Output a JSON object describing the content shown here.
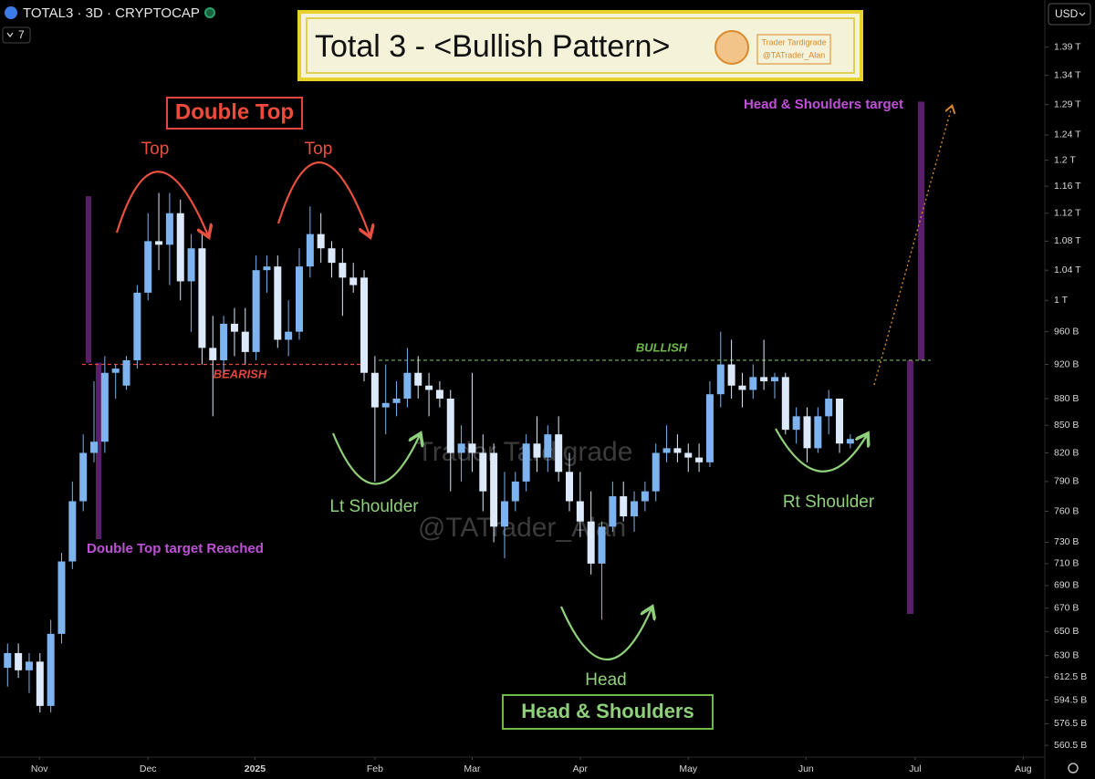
{
  "header": {
    "symbol": "TOTAL3 · 3D · CRYPTOCAP",
    "indicator_count": "7",
    "currency": "USD"
  },
  "chart_data": {
    "type": "candlestick",
    "title": "Total 3 - <Bullish Pattern>",
    "logo": [
      "Trader Tardigrade",
      "@TATrader_Alan"
    ],
    "watermark": [
      "Trader Tardigrade",
      "@TATrader_Alan"
    ],
    "up_color": "#7db4ef",
    "down_color": "#dce9fb",
    "log_scale": true,
    "open": [
      620,
      632,
      618,
      625,
      590,
      648,
      712,
      770,
      820,
      832,
      910,
      895,
      925,
      1010,
      1080,
      1075,
      1120,
      1025,
      1070,
      940,
      925,
      970,
      960,
      935,
      1040,
      1045,
      950,
      960,
      1045,
      1090,
      1070,
      1050,
      1030,
      1030,
      910,
      870,
      875,
      880,
      910,
      895,
      890,
      880,
      820,
      830,
      820,
      820,
      745,
      770,
      790,
      830,
      815,
      840,
      800,
      770,
      750,
      710,
      745,
      775,
      755,
      770,
      780,
      820,
      825,
      820,
      815,
      810,
      885,
      920,
      895,
      890,
      905,
      900,
      905,
      845,
      860,
      825,
      860,
      880,
      830
    ],
    "high": [
      640,
      640,
      632,
      632,
      660,
      720,
      790,
      840,
      900,
      930,
      920,
      930,
      1020,
      1120,
      1150,
      1150,
      1140,
      1090,
      1090,
      980,
      980,
      990,
      990,
      1060,
      1060,
      1060,
      1000,
      1070,
      1130,
      1120,
      1080,
      1070,
      1050,
      1040,
      930,
      920,
      900,
      940,
      930,
      910,
      900,
      890,
      850,
      910,
      840,
      830,
      800,
      800,
      840,
      860,
      850,
      860,
      820,
      800,
      780,
      750,
      790,
      790,
      780,
      790,
      830,
      850,
      840,
      830,
      830,
      900,
      960,
      950,
      910,
      920,
      950,
      910,
      910,
      870,
      870,
      870,
      890,
      880,
      840
    ],
    "low": [
      605,
      612,
      600,
      585,
      585,
      640,
      705,
      760,
      810,
      820,
      880,
      890,
      915,
      1000,
      1040,
      1020,
      1000,
      960,
      920,
      860,
      910,
      930,
      920,
      925,
      1010,
      940,
      930,
      950,
      1030,
      1050,
      1030,
      980,
      1010,
      900,
      790,
      840,
      860,
      870,
      880,
      860,
      870,
      780,
      790,
      800,
      760,
      730,
      715,
      760,
      780,
      800,
      800,
      790,
      760,
      735,
      700,
      660,
      740,
      750,
      740,
      760,
      770,
      810,
      810,
      800,
      800,
      805,
      870,
      880,
      870,
      880,
      890,
      880,
      840,
      830,
      810,
      820,
      840,
      820,
      825
    ],
    "close": [
      632,
      618,
      625,
      590,
      648,
      712,
      770,
      820,
      832,
      910,
      915,
      925,
      1010,
      1080,
      1075,
      1120,
      1025,
      1070,
      940,
      925,
      970,
      960,
      935,
      1040,
      1045,
      950,
      960,
      1045,
      1090,
      1070,
      1050,
      1030,
      1020,
      910,
      870,
      875,
      880,
      910,
      895,
      890,
      880,
      820,
      830,
      820,
      780,
      745,
      770,
      790,
      830,
      815,
      840,
      800,
      770,
      750,
      710,
      745,
      775,
      755,
      770,
      780,
      820,
      825,
      820,
      815,
      810,
      885,
      920,
      895,
      890,
      905,
      900,
      905,
      845,
      860,
      825,
      860,
      880,
      830,
      835
    ],
    "xlim": [
      -0.7,
      96
    ],
    "xticks": [
      {
        "value": 2.95,
        "label": "Nov"
      },
      {
        "value": 13,
        "label": "Dec"
      },
      {
        "value": 22.9,
        "label": "2025"
      },
      {
        "value": 34,
        "label": "Feb"
      },
      {
        "value": 43,
        "label": "Mar"
      },
      {
        "value": 53,
        "label": "Apr"
      },
      {
        "value": 63,
        "label": "May"
      },
      {
        "value": 73.9,
        "label": "Jun"
      },
      {
        "value": 84,
        "label": "Jul"
      },
      {
        "value": 94,
        "label": "Aug"
      }
    ],
    "ylim": [
      552,
      1478
    ],
    "yticks": [
      {
        "value": 1390,
        "label": "1.39 T"
      },
      {
        "value": 1340,
        "label": "1.34 T"
      },
      {
        "value": 1290,
        "label": "1.29 T"
      },
      {
        "value": 1240,
        "label": "1.24 T"
      },
      {
        "value": 1200,
        "label": "1.2 T"
      },
      {
        "value": 1160,
        "label": "1.16 T"
      },
      {
        "value": 1120,
        "label": "1.12 T"
      },
      {
        "value": 1080,
        "label": "1.08 T"
      },
      {
        "value": 1040,
        "label": "1.04 T"
      },
      {
        "value": 1000,
        "label": "1 T"
      },
      {
        "value": 960,
        "label": "960 B"
      },
      {
        "value": 920,
        "label": "920 B"
      },
      {
        "value": 880,
        "label": "880 B"
      },
      {
        "value": 850,
        "label": "850 B"
      },
      {
        "value": 820,
        "label": "820 B"
      },
      {
        "value": 790,
        "label": "790 B"
      },
      {
        "value": 760,
        "label": "760 B"
      },
      {
        "value": 730,
        "label": "730 B"
      },
      {
        "value": 710,
        "label": "710 B"
      },
      {
        "value": 690,
        "label": "690 B"
      },
      {
        "value": 670,
        "label": "670 B"
      },
      {
        "value": 650,
        "label": "650 B"
      },
      {
        "value": 630,
        "label": "630 B"
      },
      {
        "value": 612.5,
        "label": "612.5 B"
      },
      {
        "value": 594.5,
        "label": "594.5 B"
      },
      {
        "value": 576.5,
        "label": "576.5 B"
      },
      {
        "value": 560.5,
        "label": "560.5 B"
      }
    ],
    "levels": [
      {
        "label": "BEARISH",
        "value": 920,
        "color": "#e0463c"
      },
      {
        "label": "BULLISH",
        "value": 925,
        "color": "#6fb84a"
      }
    ],
    "targets": [
      {
        "from": 922,
        "to": 1145
      },
      {
        "from": 733,
        "to": 922
      },
      {
        "from": 925,
        "to": 1295
      },
      {
        "from": 665,
        "to": 925
      }
    ],
    "annotations": [
      "Double Top",
      "Top",
      "Top",
      "Double Top target Reached",
      "Head & Shoulders target",
      "Lt Shoulder",
      "Rt Shoulder",
      "Head",
      "Head & Shoulders"
    ]
  }
}
